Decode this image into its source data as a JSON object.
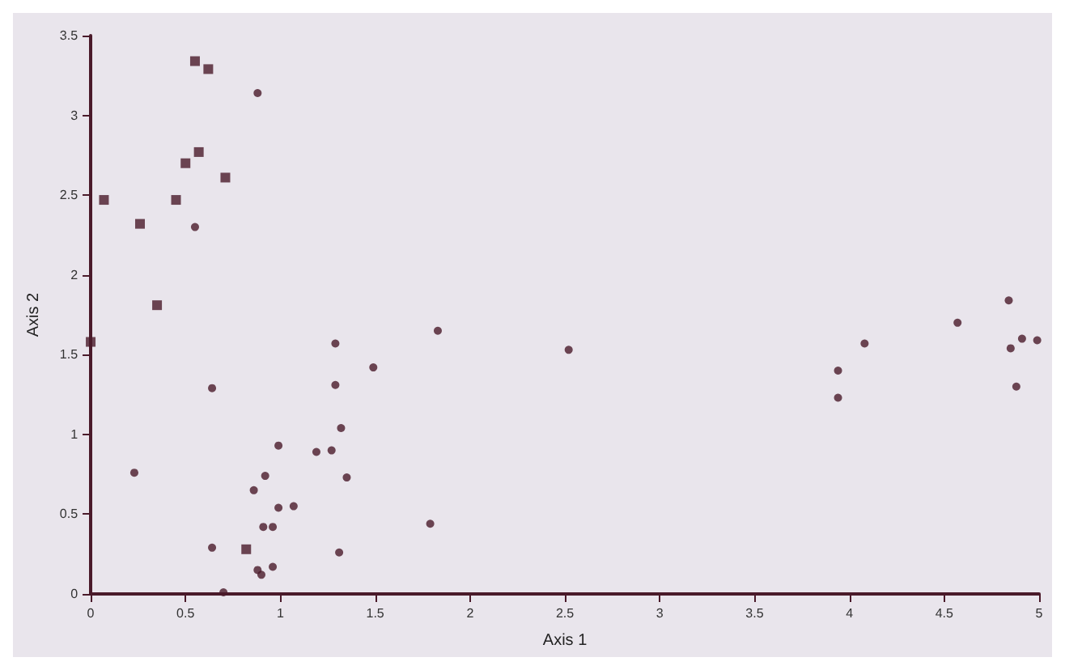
{
  "chart_data": {
    "type": "scatter",
    "xlabel": "Axis 1",
    "ylabel": "Axis 2",
    "xlim": [
      0,
      5
    ],
    "ylim": [
      0,
      3.5
    ],
    "xticks": [
      0,
      0.5,
      1,
      1.5,
      2,
      2.5,
      3,
      3.5,
      4,
      4.5,
      5
    ],
    "yticks": [
      0,
      0.5,
      1,
      1.5,
      2,
      2.5,
      3,
      3.5
    ],
    "grid": false,
    "series": [
      {
        "color": "#4a1a2a",
        "marker": "square",
        "x": [
          0,
          0.07,
          0.26,
          0.35,
          0.45,
          0.5,
          0.55,
          0.57,
          0.62,
          0.71,
          0.82
        ],
        "values": [
          1.58,
          2.47,
          2.32,
          1.81,
          2.47,
          2.7,
          3.34,
          2.77,
          3.29,
          2.61,
          0.28
        ]
      },
      {
        "color": "#4a1a2a",
        "marker": "circle",
        "x": [
          0.88,
          0.55,
          0.23,
          0.64,
          0.64,
          0.7,
          0.86,
          0.92,
          0.91,
          0.96,
          0.88,
          0.9,
          0.96,
          0.99,
          0.99,
          1.07,
          1.19,
          1.27,
          1.29,
          1.29,
          1.32,
          1.35,
          1.31,
          1.79,
          1.49,
          1.83,
          2.52,
          3.94,
          3.94,
          4.08,
          4.57,
          4.84,
          4.85,
          4.91,
          4.99,
          4.88
        ],
        "values": [
          3.14,
          2.3,
          0.76,
          1.29,
          0.29,
          0.01,
          0.65,
          0.74,
          0.42,
          0.42,
          0.15,
          0.12,
          0.17,
          0.93,
          0.54,
          0.55,
          0.89,
          0.9,
          1.57,
          1.31,
          1.04,
          0.73,
          0.26,
          0.44,
          1.42,
          1.65,
          1.53,
          1.4,
          1.23,
          1.57,
          1.7,
          1.84,
          1.54,
          1.6,
          1.59,
          1.3
        ]
      }
    ]
  }
}
